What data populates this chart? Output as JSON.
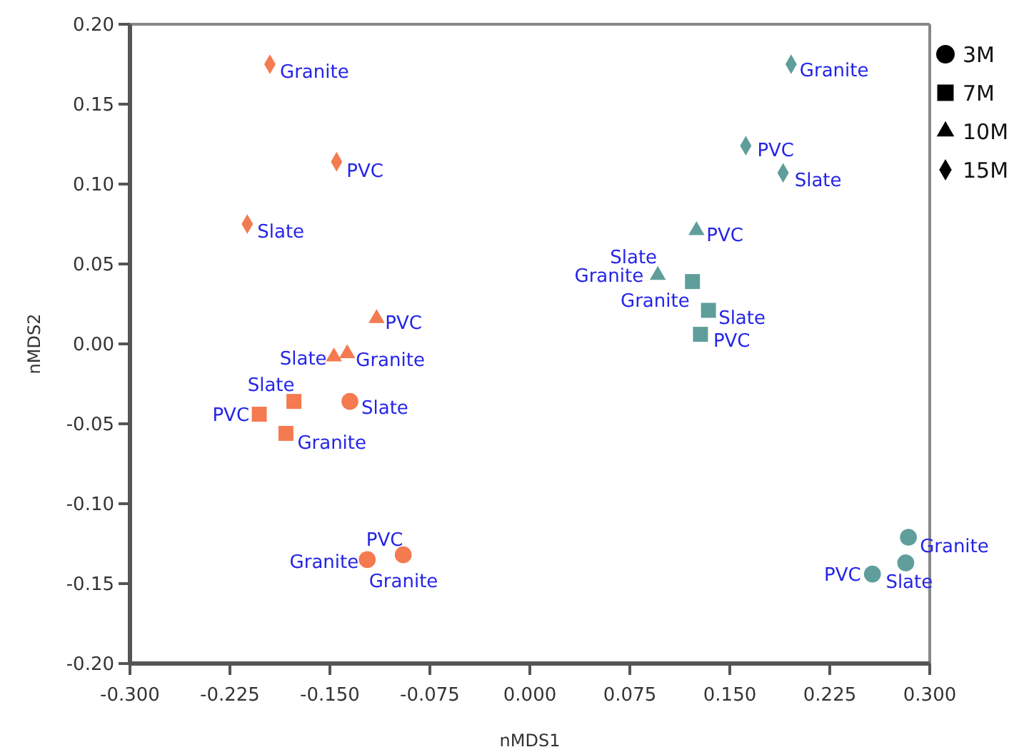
{
  "chart_data": {
    "type": "scatter",
    "xlabel": "nMDS1",
    "ylabel": "nMDS2",
    "xlim": [
      -0.3,
      0.3
    ],
    "ylim": [
      -0.2,
      0.2
    ],
    "xticks": [
      {
        "value": -0.3,
        "label": "-0.300"
      },
      {
        "value": -0.225,
        "label": "-0.225"
      },
      {
        "value": -0.15,
        "label": "-0.150"
      },
      {
        "value": -0.075,
        "label": "-0.075"
      },
      {
        "value": 0,
        "label": "0.000"
      },
      {
        "value": 0.075,
        "label": "0.075"
      },
      {
        "value": 0.15,
        "label": "0.150"
      },
      {
        "value": 0.225,
        "label": "0.225"
      },
      {
        "value": 0.3,
        "label": "0.300"
      }
    ],
    "yticks": [
      {
        "value": -0.2,
        "label": "-0.20"
      },
      {
        "value": -0.15,
        "label": "-0.15"
      },
      {
        "value": -0.1,
        "label": "-0.10"
      },
      {
        "value": -0.05,
        "label": "-0.05"
      },
      {
        "value": 0,
        "label": "0.00"
      },
      {
        "value": 0.05,
        "label": "0.05"
      },
      {
        "value": 0.1,
        "label": "0.10"
      },
      {
        "value": 0.15,
        "label": "0.15"
      },
      {
        "value": 0.2,
        "label": "0.20"
      }
    ],
    "grid": false,
    "series": [
      {
        "marker": "circle",
        "x": [
          -0.135,
          -0.122,
          -0.095,
          0.284,
          0.282,
          0.257
        ],
        "values": [
          -0.036,
          -0.135,
          -0.132,
          -0.121,
          -0.137,
          -0.144
        ],
        "colors": [
          "#f47a50",
          "#f47a50",
          "#f47a50",
          "#5f9e9a",
          "#5f9e9a",
          "#5f9e9a"
        ]
      },
      {
        "marker": "square",
        "x": [
          -0.203,
          -0.177,
          -0.183,
          0.122,
          0.134,
          0.128
        ],
        "values": [
          -0.044,
          -0.036,
          -0.056,
          0.039,
          0.021,
          0.006
        ],
        "colors": [
          "#f47a50",
          "#f47a50",
          "#f47a50",
          "#5f9e9a",
          "#5f9e9a",
          "#5f9e9a"
        ]
      },
      {
        "marker": "triangle",
        "x": [
          -0.115,
          -0.147,
          -0.137,
          0.125,
          0.096
        ],
        "values": [
          0.016,
          -0.008,
          -0.006,
          0.071,
          0.043
        ],
        "colors": [
          "#f47a50",
          "#f47a50",
          "#f47a50",
          "#5f9e9a",
          "#5f9e9a"
        ]
      },
      {
        "marker": "diamond",
        "x": [
          -0.195,
          -0.145,
          -0.212,
          0.196,
          0.162,
          0.19
        ],
        "values": [
          0.175,
          0.114,
          0.075,
          0.175,
          0.124,
          0.107
        ],
        "colors": [
          "#f47a50",
          "#f47a50",
          "#f47a50",
          "#5f9e9a",
          "#5f9e9a",
          "#5f9e9a"
        ]
      }
    ],
    "annotations": [
      "3M",
      "7M",
      "10M",
      "15M",
      {
        "text": "Slate",
        "x": -0.135,
        "y": -0.036
      },
      {
        "text": "Granite",
        "x": -0.122,
        "y": -0.135
      },
      {
        "text": "Granite",
        "x": -0.095,
        "y": -0.132
      },
      {
        "text": "PVC",
        "x": -0.095,
        "y": -0.132
      },
      {
        "text": "Granite",
        "x": 0.284,
        "y": -0.121
      },
      {
        "text": "Slate",
        "x": 0.282,
        "y": -0.137
      },
      {
        "text": "PVC",
        "x": 0.257,
        "y": -0.144
      },
      {
        "text": "PVC",
        "x": -0.203,
        "y": -0.044
      },
      {
        "text": "Slate",
        "x": -0.177,
        "y": -0.036
      },
      {
        "text": "Granite",
        "x": -0.183,
        "y": -0.056
      },
      {
        "text": "Granite",
        "x": 0.122,
        "y": 0.039
      },
      {
        "text": "Slate",
        "x": 0.134,
        "y": 0.021
      },
      {
        "text": "PVC",
        "x": 0.128,
        "y": 0.006
      },
      {
        "text": "PVC",
        "x": -0.115,
        "y": 0.016
      },
      {
        "text": "Slate",
        "x": -0.147,
        "y": -0.008
      },
      {
        "text": "Granite",
        "x": -0.137,
        "y": -0.006
      },
      {
        "text": "PVC",
        "x": 0.125,
        "y": 0.071
      },
      {
        "text": "Slate",
        "x": 0.096,
        "y": 0.043
      },
      {
        "text": "Granite",
        "x": 0.096,
        "y": 0.043
      },
      {
        "text": "Granite",
        "x": -0.195,
        "y": 0.175
      },
      {
        "text": "PVC",
        "x": -0.145,
        "y": 0.114
      },
      {
        "text": "Slate",
        "x": -0.212,
        "y": 0.075
      },
      {
        "text": "Granite",
        "x": 0.196,
        "y": 0.175
      },
      {
        "text": "PVC",
        "x": 0.162,
        "y": 0.124
      },
      {
        "text": "Slate",
        "x": 0.19,
        "y": 0.107
      }
    ]
  }
}
